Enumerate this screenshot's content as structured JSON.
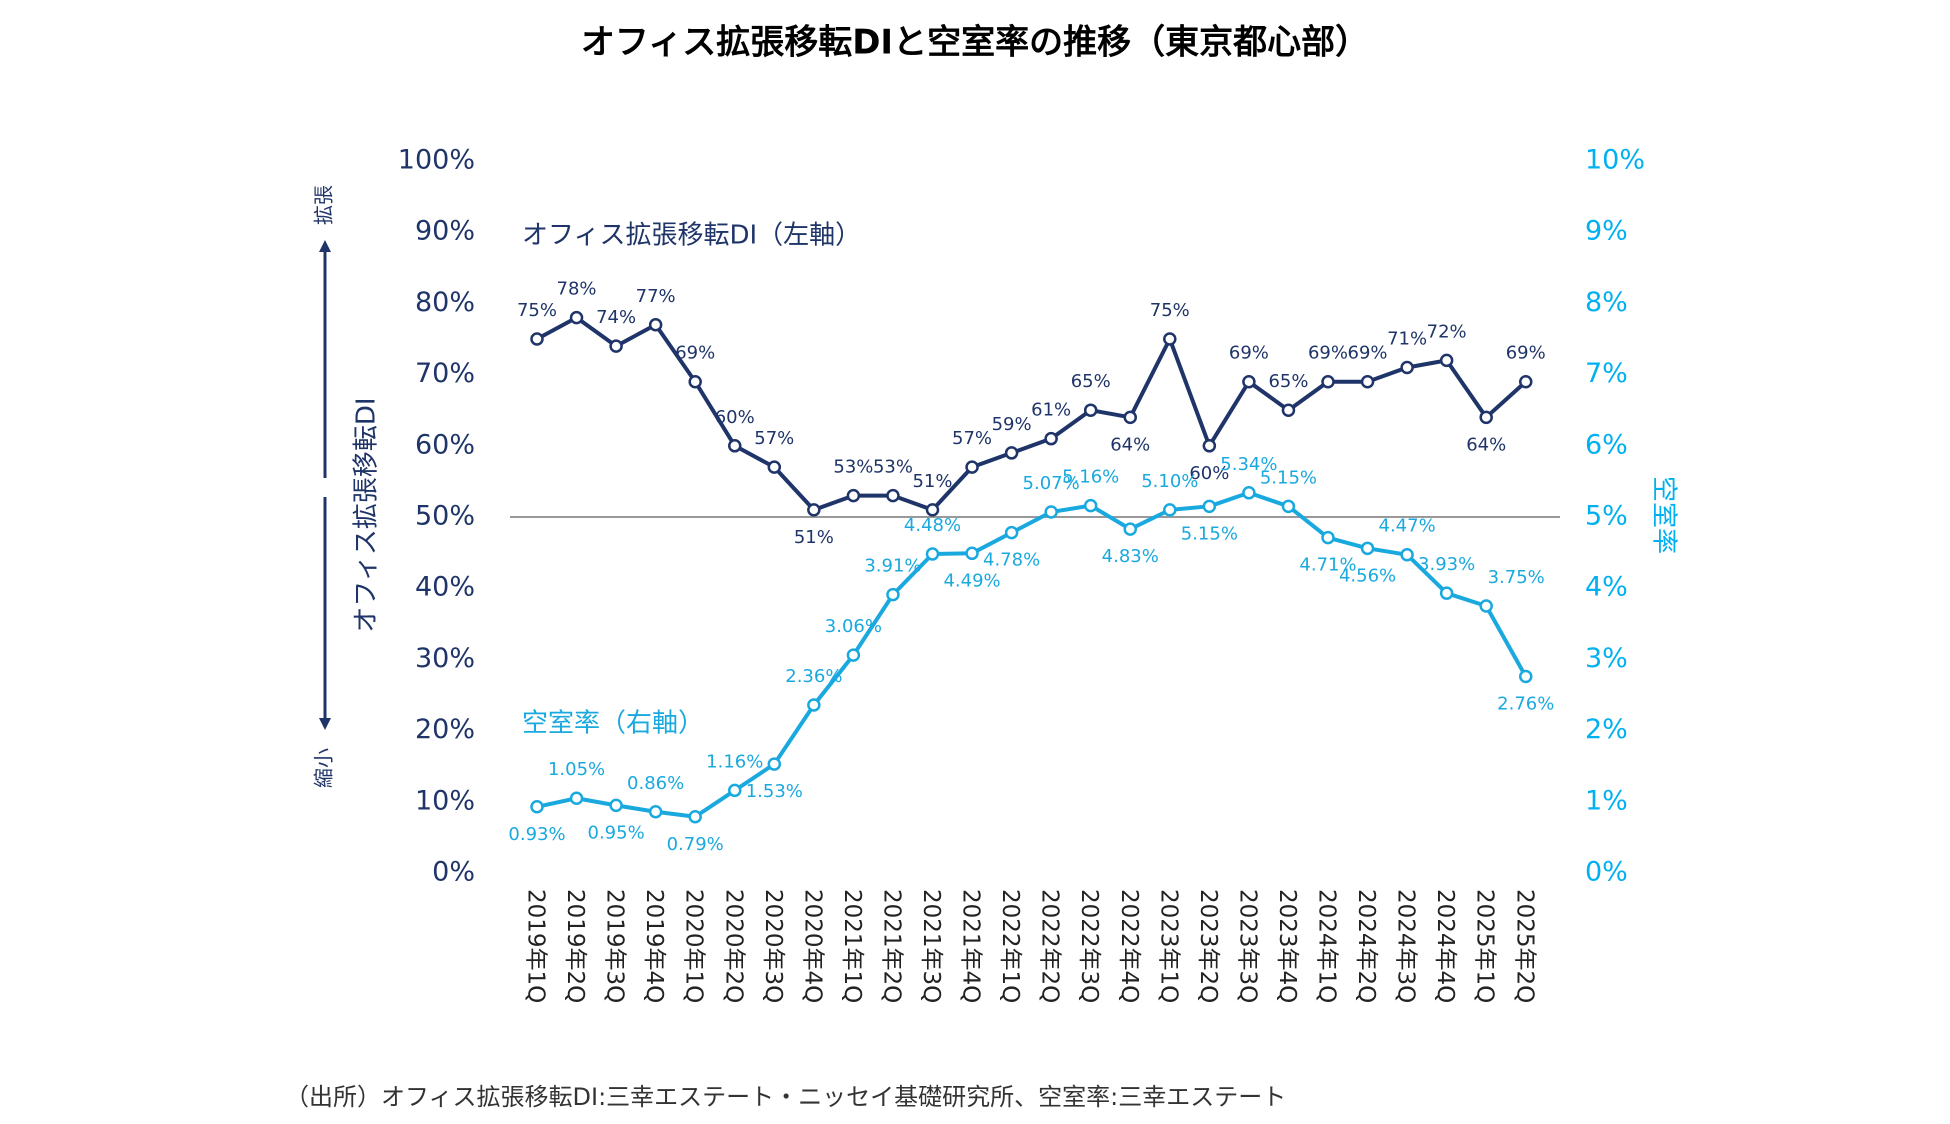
{
  "chart_data": {
    "type": "line",
    "title": "オフィス拡張移転DIと空室率の推移（東京都心部）",
    "ylabel": "オフィス拡張移転DI",
    "y2label": "空室率",
    "expand_label": "拡張",
    "shrink_label": "縮小",
    "source": "（出所）オフィス拡張移転DI:三幸エステート・ニッセイ基礎研究所、空室率:三幸エステート",
    "categories": [
      "2019年1Q",
      "2019年2Q",
      "2019年3Q",
      "2019年4Q",
      "2020年1Q",
      "2020年2Q",
      "2020年3Q",
      "2020年4Q",
      "2021年1Q",
      "2021年2Q",
      "2021年3Q",
      "2021年4Q",
      "2022年1Q",
      "2022年2Q",
      "2022年3Q",
      "2022年4Q",
      "2023年1Q",
      "2023年2Q",
      "2023年3Q",
      "2023年4Q",
      "2024年1Q",
      "2024年2Q",
      "2024年3Q",
      "2024年4Q",
      "2025年1Q",
      "2025年2Q"
    ],
    "series": [
      {
        "name": "オフィス拡張移転DI（左軸）",
        "color": "#1f3468",
        "values": [
          75,
          78,
          74,
          77,
          69,
          60,
          57,
          51,
          53,
          53,
          51,
          57,
          59,
          61,
          65,
          64,
          75,
          60,
          69,
          65,
          69,
          69,
          71,
          72,
          64,
          69
        ],
        "value_labels": [
          "75%",
          "78%",
          "74%",
          "77%",
          "69%",
          "60%",
          "57%",
          "51%",
          "53%",
          "53%",
          "51%",
          "57%",
          "59%",
          "61%",
          "65%",
          "64%",
          "75%",
          "60%",
          "69%",
          "65%",
          "69%",
          "69%",
          "71%",
          "72%",
          "64%",
          "69%"
        ]
      },
      {
        "name": "空室率（右軸）",
        "color": "#1aa9df",
        "axis": "y2",
        "values": [
          0.93,
          1.05,
          0.95,
          0.86,
          0.79,
          1.16,
          1.53,
          2.36,
          3.06,
          3.91,
          4.48,
          4.49,
          4.78,
          5.07,
          5.16,
          4.83,
          5.1,
          5.15,
          5.34,
          5.15,
          4.71,
          4.56,
          4.47,
          3.93,
          3.75,
          2.76
        ],
        "value_labels": [
          "0.93%",
          "1.05%",
          "0.95%",
          "0.86%",
          "0.79%",
          "1.16%",
          "1.53%",
          "2.36%",
          "3.06%",
          "3.91%",
          "4.48%",
          "4.49%",
          "4.78%",
          "5.07%",
          "5.16%",
          "4.83%",
          "5.10%",
          "5.15%",
          "5.34%",
          "5.15%",
          "4.71%",
          "4.56%",
          "4.47%",
          "3.93%",
          "3.75%",
          "2.76%"
        ]
      }
    ],
    "ylim": [
      0,
      100
    ],
    "yticks": [
      {
        "value": 0,
        "label": "0%"
      },
      {
        "value": 10,
        "label": "10%"
      },
      {
        "value": 20,
        "label": "20%"
      },
      {
        "value": 30,
        "label": "30%"
      },
      {
        "value": 40,
        "label": "40%"
      },
      {
        "value": 50,
        "label": "50%"
      },
      {
        "value": 60,
        "label": "60%"
      },
      {
        "value": 70,
        "label": "70%"
      },
      {
        "value": 80,
        "label": "80%"
      },
      {
        "value": 90,
        "label": "90%"
      },
      {
        "value": 100,
        "label": "100%"
      }
    ],
    "y2lim": [
      0,
      10
    ],
    "y2ticks": [
      {
        "value": 0,
        "label": "0%"
      },
      {
        "value": 1,
        "label": "1%"
      },
      {
        "value": 2,
        "label": "2%"
      },
      {
        "value": 3,
        "label": "3%"
      },
      {
        "value": 4,
        "label": "4%"
      },
      {
        "value": 5,
        "label": "5%"
      },
      {
        "value": 6,
        "label": "6%"
      },
      {
        "value": 7,
        "label": "7%"
      },
      {
        "value": 8,
        "label": "8%"
      },
      {
        "value": 9,
        "label": "9%"
      },
      {
        "value": 10,
        "label": "10%"
      }
    ],
    "reference_line": 50,
    "y2color": "#00b0f0"
  }
}
